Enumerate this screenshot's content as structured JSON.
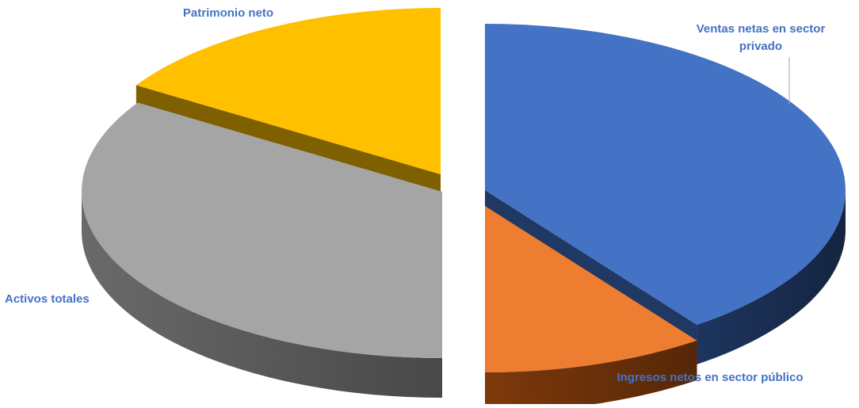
{
  "chart_data": {
    "type": "pie",
    "style": "3d-exploded",
    "title": "",
    "legend": "none",
    "slices": [
      {
        "label": "Ventas netas en sector privado",
        "value": 40,
        "color": "#4472c4",
        "side_color": "#1f3864"
      },
      {
        "label": "Ingresos netos en sector público",
        "value": 10,
        "color": "#ed7d31",
        "side_color": "#843c0c"
      },
      {
        "label": "Activos totales",
        "value": 34,
        "color": "#a5a5a5",
        "side_color": "#6f6f6f"
      },
      {
        "label": "Patrimonio neto",
        "value": 16,
        "color": "#ffc000",
        "side_color": "#7f6000"
      }
    ],
    "label_color": "#4472c4"
  }
}
